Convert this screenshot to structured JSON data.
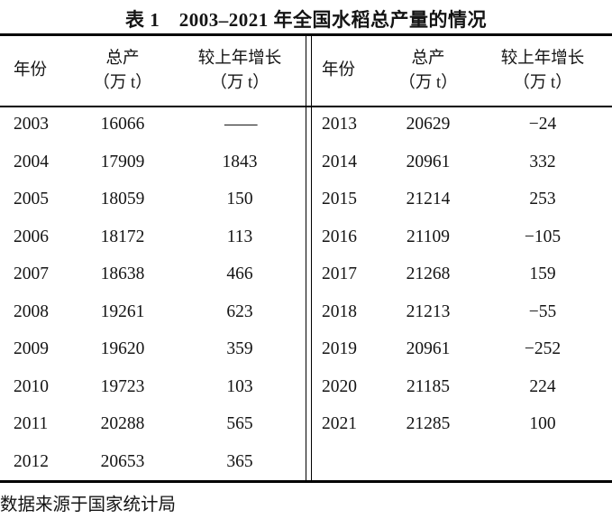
{
  "title": "表 1　2003–2021 年全国水稻总产量的情况",
  "columns": {
    "year": "年份",
    "total_line1": "总产",
    "total_line2": "（万 t）",
    "growth_line1": "较上年增长",
    "growth_line2": "（万 t）"
  },
  "footer": "数据来源于国家统计局",
  "colors": {
    "text": "#141414",
    "rule": "#000000",
    "background": "#ffffff"
  },
  "chart_data": {
    "type": "table",
    "title": "表 1 2003–2021 年全国水稻总产量的情况",
    "column_headers": [
      "年份",
      "总产（万 t）",
      "较上年增长（万 t）"
    ],
    "left_rows": [
      [
        "2003",
        "16066",
        "——"
      ],
      [
        "2004",
        "17909",
        "1843"
      ],
      [
        "2005",
        "18059",
        "150"
      ],
      [
        "2006",
        "18172",
        "113"
      ],
      [
        "2007",
        "18638",
        "466"
      ],
      [
        "2008",
        "19261",
        "623"
      ],
      [
        "2009",
        "19620",
        "359"
      ],
      [
        "2010",
        "19723",
        "103"
      ],
      [
        "2011",
        "20288",
        "565"
      ],
      [
        "2012",
        "20653",
        "365"
      ]
    ],
    "right_rows": [
      [
        "2013",
        "20629",
        "−24"
      ],
      [
        "2014",
        "20961",
        "332"
      ],
      [
        "2015",
        "21214",
        "253"
      ],
      [
        "2016",
        "21109",
        "−105"
      ],
      [
        "2017",
        "21268",
        "159"
      ],
      [
        "2018",
        "21213",
        "−55"
      ],
      [
        "2019",
        "20961",
        "−252"
      ],
      [
        "2020",
        "21185",
        "224"
      ],
      [
        "2021",
        "21285",
        "100"
      ]
    ],
    "source_note": "数据来源于国家统计局"
  }
}
